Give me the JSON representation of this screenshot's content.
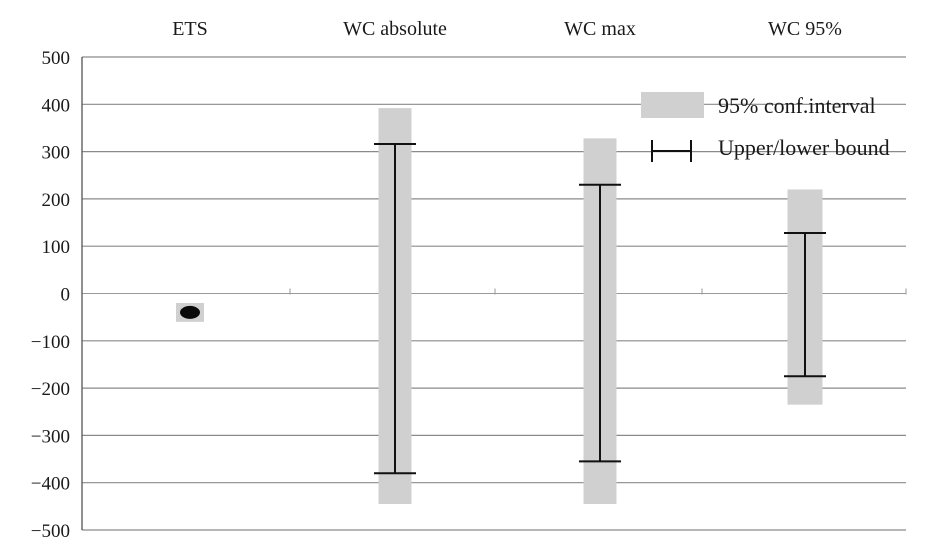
{
  "chart_data": {
    "type": "interval",
    "categories": [
      "ETS",
      "WC absolute",
      "WC max",
      "WC 95%"
    ],
    "ylim": [
      -500,
      500
    ],
    "yticks": [
      500,
      400,
      300,
      200,
      100,
      0,
      -100,
      -200,
      -300,
      -400,
      -500
    ],
    "grid": true,
    "legend_position": "top-right",
    "legend": [
      {
        "key": "ci",
        "label": "95% conf.interval"
      },
      {
        "key": "bounds",
        "label": "Upper/lower bound"
      }
    ],
    "series": [
      {
        "key": "ci",
        "lower": [
          -60,
          -445,
          -445,
          -235
        ],
        "upper": [
          -20,
          392,
          328,
          220
        ]
      },
      {
        "key": "bounds",
        "lower": [
          -40,
          -380,
          -355,
          -175
        ],
        "upper": [
          -40,
          316,
          230,
          128
        ]
      }
    ],
    "colors": {
      "ci": "#d0d0d0",
      "bounds": "#111111",
      "grid": "#8a8a8a"
    }
  }
}
